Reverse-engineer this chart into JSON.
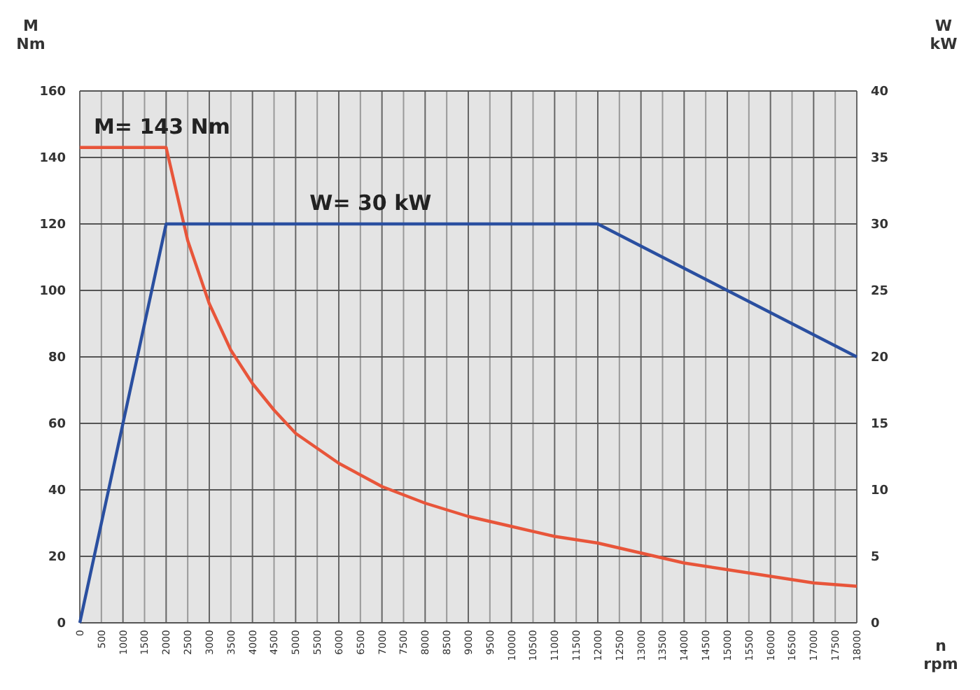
{
  "chart_data": {
    "type": "line",
    "ylabel": "M\nNm",
    "y2label": "W\nkW",
    "xlabel": "n\nrpm",
    "xlim": [
      0,
      18000
    ],
    "xticks": [
      0,
      500,
      1000,
      1500,
      2000,
      2500,
      3000,
      3500,
      4000,
      4500,
      5000,
      5500,
      6000,
      6500,
      7000,
      7500,
      8000,
      8500,
      9000,
      9500,
      10000,
      10500,
      11000,
      11500,
      12000,
      12500,
      13000,
      13500,
      14000,
      14500,
      15000,
      15500,
      16000,
      16500,
      17000,
      17500,
      18000
    ],
    "ylim": [
      0,
      160
    ],
    "yticks": [
      0,
      20,
      40,
      60,
      80,
      100,
      120,
      140,
      160
    ],
    "y2lim": [
      0,
      40
    ],
    "y2ticks": [
      0,
      5,
      10,
      15,
      20,
      25,
      30,
      35,
      40
    ],
    "grid": true,
    "marker": "none",
    "line_style": "solid",
    "series": [
      {
        "color": "#e8553a",
        "x": [
          0,
          2000,
          2500,
          3000,
          3500,
          4000,
          4500,
          5000,
          6000,
          7000,
          8000,
          9000,
          10000,
          11000,
          12000,
          13000,
          14000,
          15000,
          16000,
          17000,
          18000
        ],
        "values": [
          143,
          143,
          115,
          96,
          82,
          72,
          64,
          57,
          48,
          41,
          36,
          32,
          29,
          26,
          24,
          21,
          18,
          16,
          14,
          12,
          11
        ]
      },
      {
        "color": "#2a4fa0",
        "axis": "y2",
        "x": [
          0,
          2000,
          12000,
          18000
        ],
        "values": [
          0,
          30,
          30,
          20
        ]
      }
    ],
    "annotations": [
      {
        "text": "M= 143 Nm",
        "x": 0,
        "y": 143
      },
      {
        "text": "W= 30 kW",
        "x": 5000,
        "y": 120
      }
    ]
  }
}
